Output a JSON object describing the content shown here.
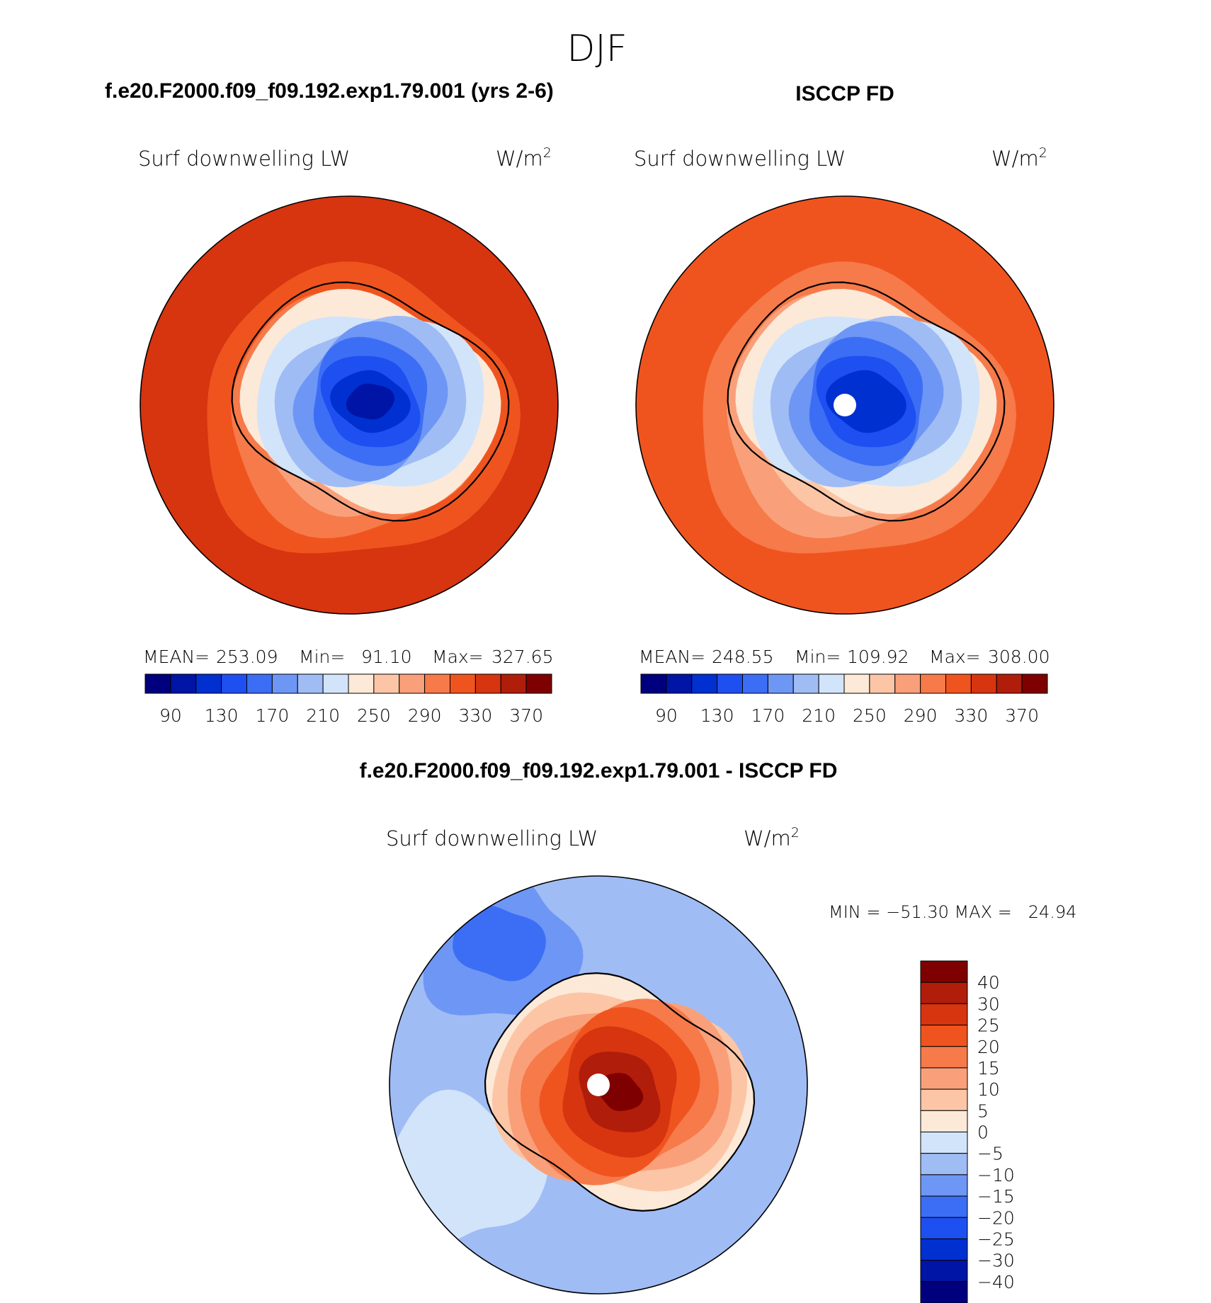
{
  "figure": {
    "season": "DJF",
    "case_title": "f.e20.F2000.f09_f09.192.exp1.79.001 (yrs 2-6)",
    "obs_title": "ISCCP FD",
    "diff_title": "f.e20.F2000.f09_f09.192.exp1.79.001 - ISCCP FD"
  },
  "panels": {
    "model": {
      "variable": "Surf downwelling LW",
      "units_base": "W/m",
      "units_exp": "2",
      "stats": {
        "mean_label": "MEAN=",
        "mean": "253.09",
        "min_label": "Min=",
        "min": "91.10",
        "max_label": "Max=",
        "max": "327.65"
      }
    },
    "obs": {
      "variable": "Surf downwelling LW",
      "units_base": "W/m",
      "units_exp": "2",
      "stats": {
        "mean_label": "MEAN=",
        "mean": "248.55",
        "min_label": "Min=",
        "min": "109.92",
        "max_label": "Max=",
        "max": "308.00"
      }
    },
    "diff": {
      "variable": "Surf downwelling LW",
      "units_base": "W/m",
      "units_exp": "2",
      "min_max_text": "MIN = −51.30 MAX =   24.94"
    }
  },
  "chart_data": [
    {
      "type": "heatmap",
      "name": "model",
      "title": "f.e20.F2000.f09_f09.192.exp1.79.001 (yrs 2-6)",
      "projection": "south polar stereographic",
      "variable": "Surf downwelling LW",
      "units": "W/m2",
      "mean": 253.09,
      "min": 91.1,
      "max": 327.65,
      "contour_levels": [
        90,
        110,
        130,
        150,
        170,
        190,
        210,
        230,
        250,
        270,
        290,
        310,
        330,
        350,
        370
      ],
      "colorbar_ticks": [
        "90",
        "130",
        "170",
        "210",
        "250",
        "290",
        "330",
        "370"
      ],
      "colors": [
        "#00007f",
        "#0014a6",
        "#0030d0",
        "#1e4ff0",
        "#3c6ef5",
        "#6e96f5",
        "#a0bcf5",
        "#d2e4fa",
        "#fde9d8",
        "#fcc6a6",
        "#f9a07a",
        "#f67a4a",
        "#f0541e",
        "#d73410",
        "#b01d0a",
        "#7f0000"
      ],
      "rings_ocean_levels": [
        330,
        310,
        290,
        270,
        250
      ],
      "rings_ice_levels": [
        230,
        210,
        190,
        170,
        150,
        130,
        110,
        90
      ]
    },
    {
      "type": "heatmap",
      "name": "obs",
      "title": "ISCCP FD",
      "projection": "south polar stereographic",
      "variable": "Surf downwelling LW",
      "units": "W/m2",
      "mean": 248.55,
      "min": 109.92,
      "max": 308.0,
      "contour_levels": [
        90,
        110,
        130,
        150,
        170,
        190,
        210,
        230,
        250,
        270,
        290,
        310,
        330,
        350,
        370
      ],
      "colorbar_ticks": [
        "90",
        "130",
        "170",
        "210",
        "250",
        "290",
        "330",
        "370"
      ],
      "colors": [
        "#00007f",
        "#0014a6",
        "#0030d0",
        "#1e4ff0",
        "#3c6ef5",
        "#6e96f5",
        "#a0bcf5",
        "#d2e4fa",
        "#fde9d8",
        "#fcc6a6",
        "#f9a07a",
        "#f67a4a",
        "#f0541e",
        "#d73410",
        "#b01d0a",
        "#7f0000"
      ],
      "rings_ocean_levels": [
        310,
        290,
        270,
        250
      ],
      "rings_ice_levels": [
        230,
        210,
        190,
        170,
        150,
        130,
        110
      ]
    },
    {
      "type": "heatmap",
      "name": "difference",
      "title": "f.e20.F2000.f09_f09.192.exp1.79.001 - ISCCP FD",
      "projection": "south polar stereographic",
      "variable": "Surf downwelling LW",
      "units": "W/m2",
      "min": -51.3,
      "max": 24.94,
      "contour_levels": [
        -40,
        -30,
        -25,
        -20,
        -15,
        -10,
        -5,
        0,
        5,
        10,
        15,
        20,
        25,
        30,
        40
      ],
      "colorbar_ticks": [
        "40",
        "30",
        "25",
        "20",
        "15",
        "10",
        "5",
        "0",
        "−5",
        "−10",
        "−15",
        "−20",
        "−25",
        "−30",
        "−40"
      ],
      "colors": [
        "#7f0000",
        "#b01d0a",
        "#d73410",
        "#f0541e",
        "#f67a4a",
        "#f9a07a",
        "#fcc6a6",
        "#fde9d8",
        "#d2e4fa",
        "#a0bcf5",
        "#6e96f5",
        "#3c6ef5",
        "#1e4ff0",
        "#0030d0",
        "#0014a6",
        "#00007f"
      ]
    }
  ]
}
